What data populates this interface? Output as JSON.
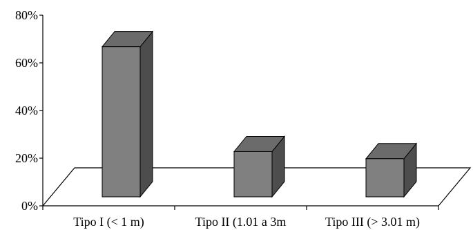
{
  "chart_data": {
    "type": "bar",
    "style": "3d-column",
    "categories": [
      "Tipo I (< 1 m)",
      "Tipo II (1.01 a 3m",
      "Tipo III (> 3.01 m)"
    ],
    "values": [
      63,
      19,
      16
    ],
    "unit": "%",
    "ylim": [
      0,
      80
    ],
    "y_ticks": [
      "0%",
      "20%",
      "40%",
      "60%",
      "80%"
    ],
    "y_tick_values": [
      0,
      20,
      40,
      60,
      80
    ],
    "title": "",
    "xlabel": "",
    "ylabel": "",
    "grid": false,
    "legend": "none",
    "colors": {
      "front": "#808080",
      "top": "#6b6b6b",
      "side": "#4d4d4d",
      "edge": "#000000",
      "axis": "#000000"
    }
  }
}
